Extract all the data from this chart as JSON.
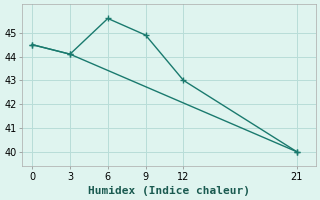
{
  "line1_x": [
    0,
    3,
    6,
    9,
    12,
    21
  ],
  "line1_y": [
    44.5,
    44.1,
    45.6,
    44.9,
    43.0,
    40.0
  ],
  "line2_x": [
    0,
    3,
    21
  ],
  "line2_y": [
    44.5,
    44.1,
    40.0
  ],
  "line_color": "#1a7a6e",
  "bg_color": "#dff4ef",
  "grid_color": "#b8ddd8",
  "xlabel": "Humidex (Indice chaleur)",
  "xlabel_fontsize": 8,
  "xticks": [
    0,
    3,
    6,
    9,
    12,
    21
  ],
  "yticks": [
    40,
    41,
    42,
    43,
    44,
    45
  ],
  "ylim": [
    39.4,
    46.2
  ],
  "xlim": [
    -0.8,
    22.5
  ],
  "marker": "+",
  "marker_size": 5,
  "linewidth": 1.0
}
